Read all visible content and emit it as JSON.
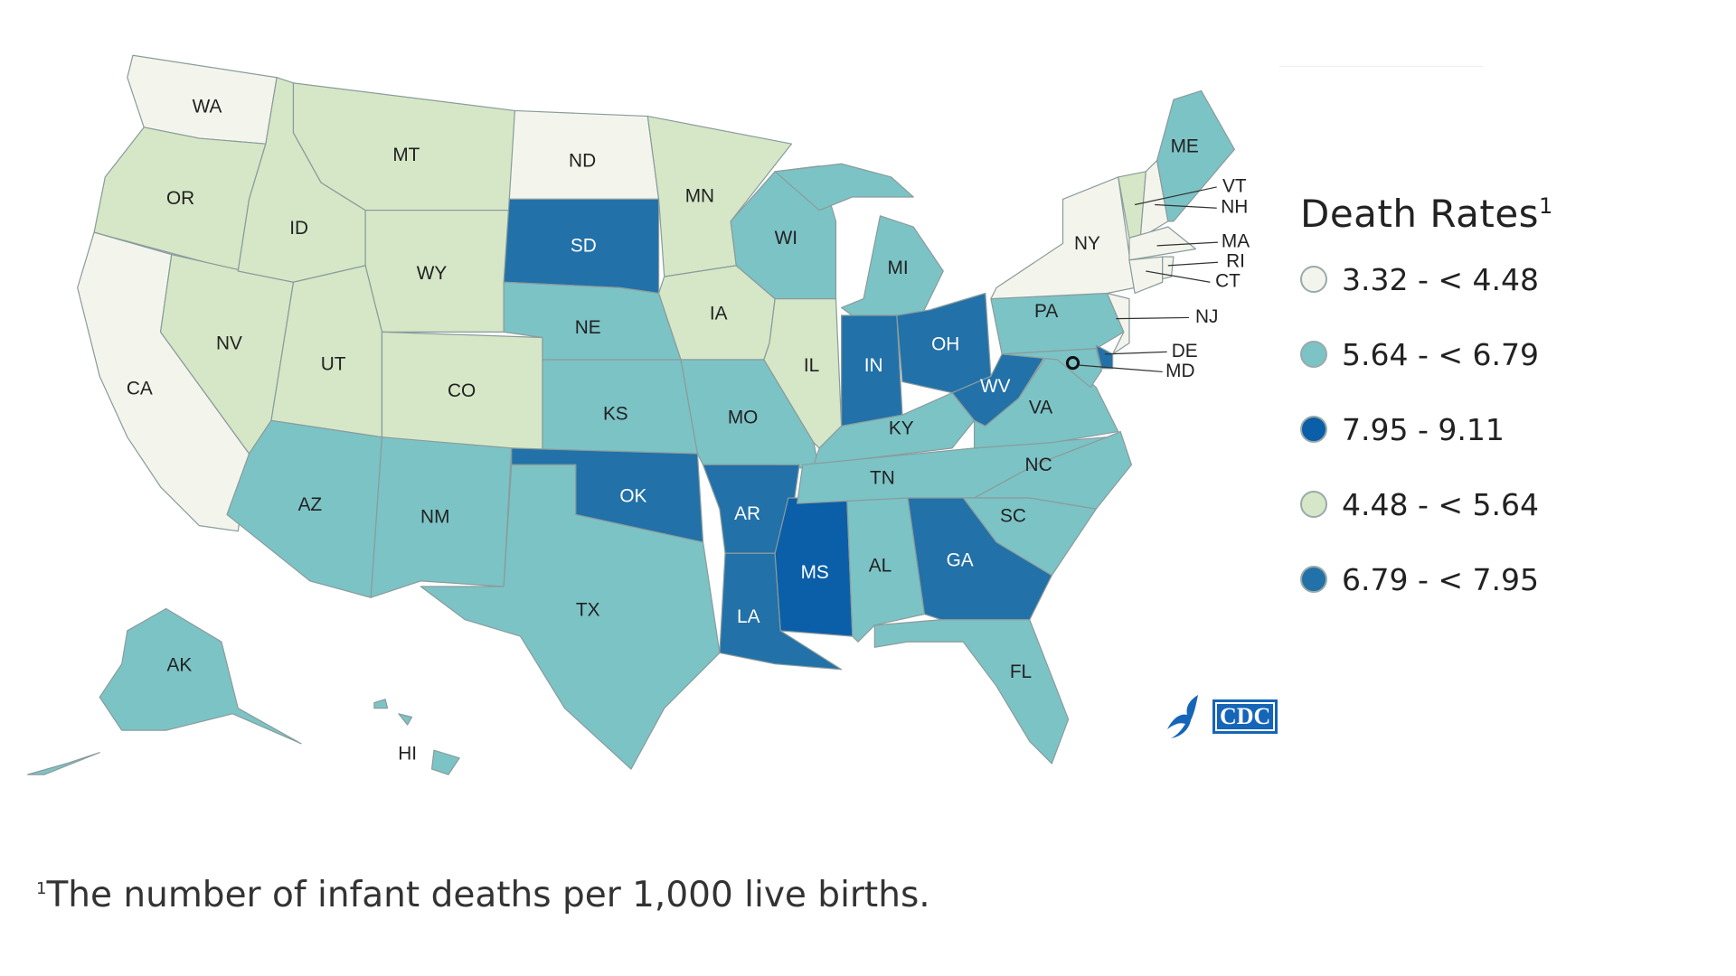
{
  "legend": {
    "title": "Death Rates",
    "title_sup": "1",
    "items": [
      {
        "label": "3.32 - < 4.48",
        "color": "#f3f5ec"
      },
      {
        "label": "5.64 - < 6.79",
        "color": "#7cc3c6"
      },
      {
        "label": "7.95 - 9.11",
        "color": "#0b5ea8"
      },
      {
        "label": "4.48 - < 5.64",
        "color": "#d5e7c6"
      },
      {
        "label": "6.79 - < 7.95",
        "color": "#2271a8"
      }
    ]
  },
  "bins": {
    "b1": "#f3f5ec",
    "b2": "#d5e7c6",
    "b3": "#7cc3c6",
    "b4": "#2271a8",
    "b5": "#0b5ea8"
  },
  "states": [
    {
      "abbr": "WA",
      "bin": "b1"
    },
    {
      "abbr": "OR",
      "bin": "b2"
    },
    {
      "abbr": "CA",
      "bin": "b1"
    },
    {
      "abbr": "NV",
      "bin": "b2"
    },
    {
      "abbr": "ID",
      "bin": "b2"
    },
    {
      "abbr": "MT",
      "bin": "b2"
    },
    {
      "abbr": "WY",
      "bin": "b2"
    },
    {
      "abbr": "UT",
      "bin": "b2"
    },
    {
      "abbr": "CO",
      "bin": "b2"
    },
    {
      "abbr": "AZ",
      "bin": "b3"
    },
    {
      "abbr": "NM",
      "bin": "b3"
    },
    {
      "abbr": "ND",
      "bin": "b1"
    },
    {
      "abbr": "SD",
      "bin": "b4"
    },
    {
      "abbr": "NE",
      "bin": "b3"
    },
    {
      "abbr": "KS",
      "bin": "b3"
    },
    {
      "abbr": "OK",
      "bin": "b4"
    },
    {
      "abbr": "TX",
      "bin": "b3"
    },
    {
      "abbr": "MN",
      "bin": "b2"
    },
    {
      "abbr": "IA",
      "bin": "b2"
    },
    {
      "abbr": "MO",
      "bin": "b3"
    },
    {
      "abbr": "AR",
      "bin": "b4"
    },
    {
      "abbr": "LA",
      "bin": "b4"
    },
    {
      "abbr": "MS",
      "bin": "b5"
    },
    {
      "abbr": "AL",
      "bin": "b3"
    },
    {
      "abbr": "WI",
      "bin": "b3"
    },
    {
      "abbr": "IL",
      "bin": "b2"
    },
    {
      "abbr": "MI",
      "bin": "b3"
    },
    {
      "abbr": "IN",
      "bin": "b4"
    },
    {
      "abbr": "OH",
      "bin": "b4"
    },
    {
      "abbr": "KY",
      "bin": "b3"
    },
    {
      "abbr": "TN",
      "bin": "b3"
    },
    {
      "abbr": "WV",
      "bin": "b4"
    },
    {
      "abbr": "VA",
      "bin": "b3"
    },
    {
      "abbr": "NC",
      "bin": "b3"
    },
    {
      "abbr": "SC",
      "bin": "b3"
    },
    {
      "abbr": "GA",
      "bin": "b4"
    },
    {
      "abbr": "FL",
      "bin": "b3"
    },
    {
      "abbr": "PA",
      "bin": "b3"
    },
    {
      "abbr": "NY",
      "bin": "b1"
    },
    {
      "abbr": "VT",
      "bin": "b2"
    },
    {
      "abbr": "NH",
      "bin": "b1"
    },
    {
      "abbr": "ME",
      "bin": "b3"
    },
    {
      "abbr": "MA",
      "bin": "b1"
    },
    {
      "abbr": "CT",
      "bin": "b1"
    },
    {
      "abbr": "RI",
      "bin": "b1"
    },
    {
      "abbr": "NJ",
      "bin": "b1"
    },
    {
      "abbr": "DE",
      "bin": "b4"
    },
    {
      "abbr": "MD",
      "bin": "b3"
    },
    {
      "abbr": "AK",
      "bin": "b3"
    },
    {
      "abbr": "HI",
      "bin": "b3"
    }
  ],
  "dc_marker": "o",
  "logo_text": "CDC",
  "footnote": {
    "sup": "1",
    "text": "The number of infant deaths per 1,000 live births."
  }
}
